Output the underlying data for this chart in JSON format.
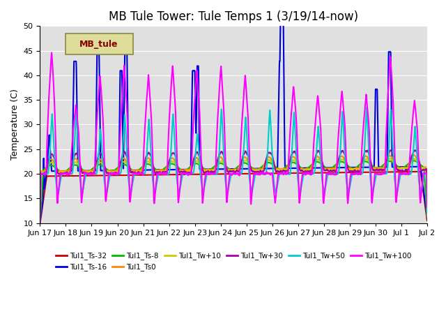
{
  "title": "MB Tule Tower: Tule Temps 1 (3/19/14-now)",
  "ylabel": "Temperature (C)",
  "ylim": [
    10,
    50
  ],
  "yticks": [
    10,
    15,
    20,
    25,
    30,
    35,
    40,
    45,
    50
  ],
  "series": [
    {
      "label": "Tul1_Ts-32",
      "color": "#cc0000",
      "lw": 1.5
    },
    {
      "label": "Tul1_Ts-16",
      "color": "#0000dd",
      "lw": 1.5
    },
    {
      "label": "Tul1_Ts-8",
      "color": "#00bb00",
      "lw": 1.5
    },
    {
      "label": "Tul1_Ts0",
      "color": "#ff8800",
      "lw": 1.5
    },
    {
      "label": "Tul1_Tw+10",
      "color": "#cccc00",
      "lw": 1.5
    },
    {
      "label": "Tul1_Tw+30",
      "color": "#aa00aa",
      "lw": 1.5
    },
    {
      "label": "Tul1_Tw+50",
      "color": "#00cccc",
      "lw": 1.5
    },
    {
      "label": "Tul1_Tw+100",
      "color": "#ff00ff",
      "lw": 1.5
    }
  ],
  "xtick_labels": [
    "Jun 17",
    "Jun 18",
    "Jun 19",
    "Jun 20",
    "Jun 21",
    "Jun 22",
    "Jun 23",
    "Jun 24",
    "Jun 25",
    "Jun 26",
    "Jun 27",
    "Jun 28",
    "Jun 29",
    "Jun 30",
    "Jul 1",
    "Jul 2"
  ],
  "legend_box_color": "#dddd99",
  "legend_box_edge": "#888844",
  "legend_box_text": "MB_tule",
  "legend_box_text_color": "#880000",
  "title_fontsize": 12,
  "axis_fontsize": 9,
  "tick_fontsize": 8
}
